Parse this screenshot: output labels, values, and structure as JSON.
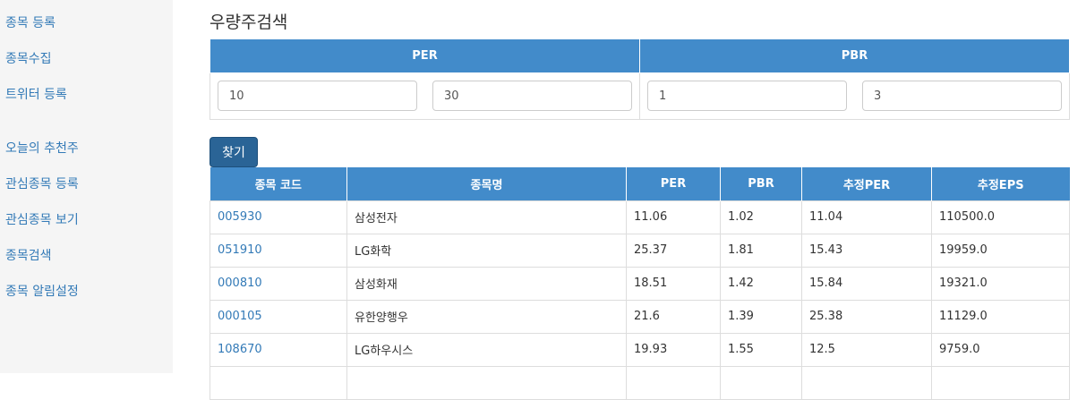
{
  "sidebar": {
    "items": [
      {
        "label": "종목 등록"
      },
      {
        "label": "종목수집"
      },
      {
        "label": "트위터 등록"
      },
      {
        "label": "오늘의 추천주"
      },
      {
        "label": "관심종목 등록"
      },
      {
        "label": "관심종목 보기"
      },
      {
        "label": "종목검색"
      },
      {
        "label": "종목 알림설정"
      }
    ]
  },
  "main": {
    "title": "우량주검색",
    "filter": {
      "per_header": "PER",
      "pbr_header": "PBR",
      "per_min": "10",
      "per_max": "30",
      "pbr_min": "1",
      "pbr_max": "3"
    },
    "find_button": "찾기",
    "results": {
      "columns": [
        "종목 코드",
        "종목명",
        "PER",
        "PBR",
        "추정PER",
        "추정EPS"
      ],
      "rows": [
        [
          "005930",
          "삼성전자",
          "11.06",
          "1.02",
          "11.04",
          "110500.0"
        ],
        [
          "051910",
          "LG화학",
          "25.37",
          "1.81",
          "15.43",
          "19959.0"
        ],
        [
          "000810",
          "삼성화재",
          "18.51",
          "1.42",
          "15.84",
          "19321.0"
        ],
        [
          "000105",
          "유한양행우",
          "21.6",
          "1.39",
          "25.38",
          "11129.0"
        ],
        [
          "108670",
          "LG하우시스",
          "19.93",
          "1.55",
          "12.5",
          "9759.0"
        ]
      ]
    }
  },
  "colors": {
    "header_bg": "#428bca",
    "link": "#337ab7",
    "button_bg": "#2a6496",
    "sidebar_bg": "#f5f5f5"
  }
}
